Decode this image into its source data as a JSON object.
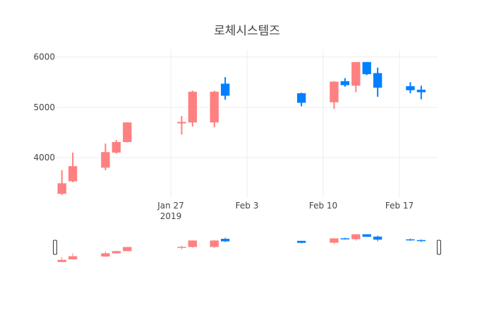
{
  "chart_data": {
    "type": "candlestick",
    "title": "로체시스템즈",
    "xlabel": "",
    "ylabel": "",
    "ylim": [
      3200,
      6150
    ],
    "x_range": [
      "2019-01-17",
      "2019-02-20"
    ],
    "y_ticks": [
      4000,
      5000,
      6000
    ],
    "x_ticks": [
      {
        "date": "2019-01-27",
        "label": "Jan 27",
        "sub": "2019"
      },
      {
        "date": "2019-02-03",
        "label": "Feb 3",
        "sub": ""
      },
      {
        "date": "2019-02-10",
        "label": "Feb 10",
        "sub": ""
      },
      {
        "date": "2019-02-17",
        "label": "Feb 17",
        "sub": ""
      }
    ],
    "grid": true,
    "rangeslider": true,
    "colors": {
      "increasing": "#FF8080",
      "decreasing": "#0080FF"
    },
    "candles": [
      {
        "date": "2019-01-17",
        "open": 3280,
        "high": 3750,
        "low": 3260,
        "close": 3490
      },
      {
        "date": "2019-01-18",
        "open": 3530,
        "high": 4100,
        "low": 3510,
        "close": 3830
      },
      {
        "date": "2019-01-21",
        "open": 3800,
        "high": 4280,
        "low": 3750,
        "close": 4110
      },
      {
        "date": "2019-01-22",
        "open": 4100,
        "high": 4350,
        "low": 4080,
        "close": 4310
      },
      {
        "date": "2019-01-23",
        "open": 4310,
        "high": 4700,
        "low": 4300,
        "close": 4700
      },
      {
        "date": "2019-01-28",
        "open": 4680,
        "high": 4830,
        "low": 4460,
        "close": 4710
      },
      {
        "date": "2019-01-29",
        "open": 4700,
        "high": 5330,
        "low": 4620,
        "close": 5310
      },
      {
        "date": "2019-01-31",
        "open": 4700,
        "high": 5330,
        "low": 4600,
        "close": 5310
      },
      {
        "date": "2019-02-01",
        "open": 5470,
        "high": 5600,
        "low": 5150,
        "close": 5230
      },
      {
        "date": "2019-02-08",
        "open": 5280,
        "high": 5290,
        "low": 5020,
        "close": 5090
      },
      {
        "date": "2019-02-11",
        "open": 5100,
        "high": 5520,
        "low": 4970,
        "close": 5510
      },
      {
        "date": "2019-02-12",
        "open": 5520,
        "high": 5580,
        "low": 5410,
        "close": 5440
      },
      {
        "date": "2019-02-13",
        "open": 5430,
        "high": 5900,
        "low": 5300,
        "close": 5900
      },
      {
        "date": "2019-02-14",
        "open": 5900,
        "high": 5900,
        "low": 5640,
        "close": 5660
      },
      {
        "date": "2019-02-15",
        "open": 5680,
        "high": 5790,
        "low": 5210,
        "close": 5390
      },
      {
        "date": "2019-02-18",
        "open": 5420,
        "high": 5500,
        "low": 5280,
        "close": 5340
      },
      {
        "date": "2019-02-19",
        "open": 5350,
        "high": 5430,
        "low": 5160,
        "close": 5300
      }
    ]
  }
}
